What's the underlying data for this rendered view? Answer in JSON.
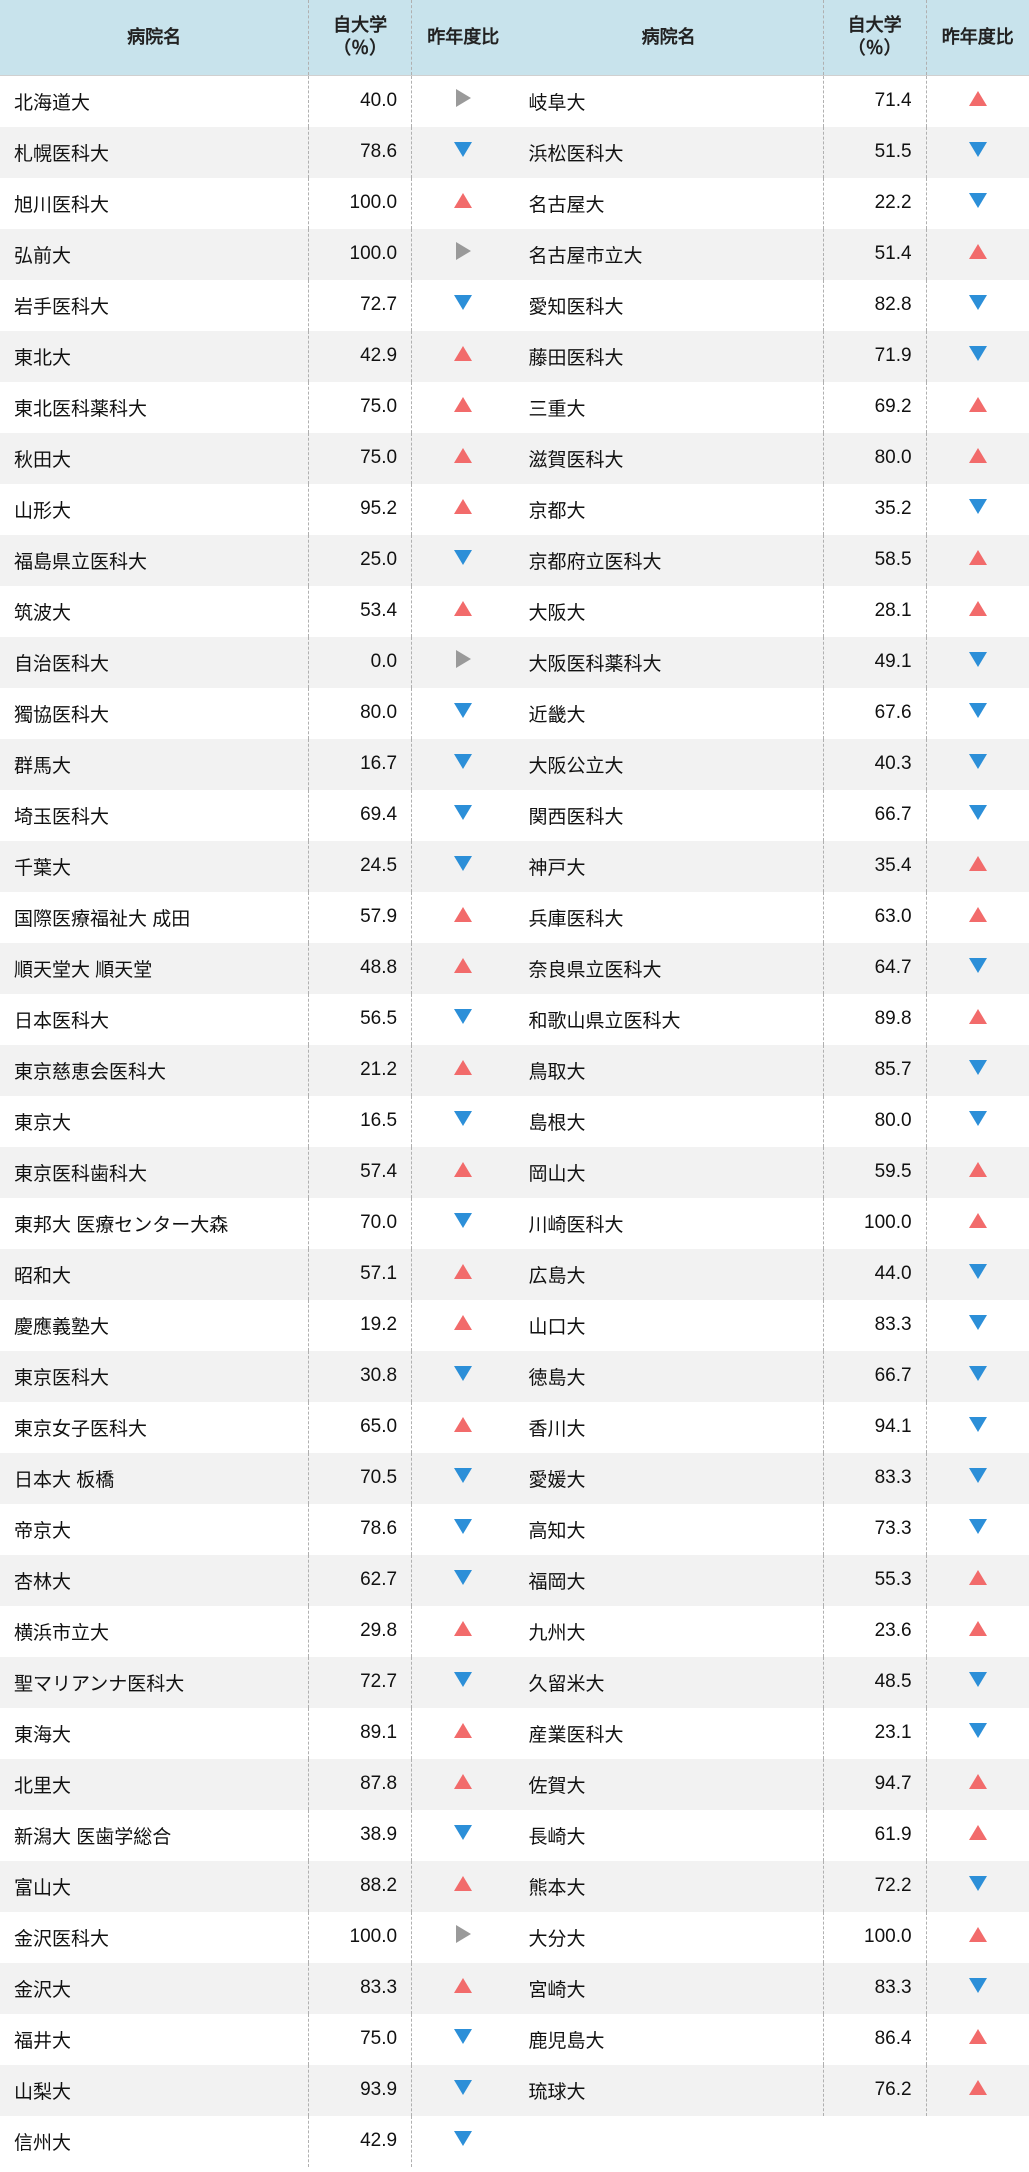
{
  "headers": {
    "name": "病院名",
    "pct": "自大学（％）",
    "change": "昨年度比"
  },
  "colors": {
    "header_bg": "#c8e3ec",
    "row_even": "#f2f2f2",
    "row_odd": "#ffffff",
    "up": "#f26b6b",
    "down": "#2c8fd8",
    "flat": "#9a9a9a",
    "border": "#b0b0b0"
  },
  "left": [
    {
      "name": "北海道大",
      "pct": "40.0",
      "chg": "flat"
    },
    {
      "name": "札幌医科大",
      "pct": "78.6",
      "chg": "down"
    },
    {
      "name": "旭川医科大",
      "pct": "100.0",
      "chg": "up"
    },
    {
      "name": "弘前大",
      "pct": "100.0",
      "chg": "flat"
    },
    {
      "name": "岩手医科大",
      "pct": "72.7",
      "chg": "down"
    },
    {
      "name": "東北大",
      "pct": "42.9",
      "chg": "up"
    },
    {
      "name": "東北医科薬科大",
      "pct": "75.0",
      "chg": "up"
    },
    {
      "name": "秋田大",
      "pct": "75.0",
      "chg": "up"
    },
    {
      "name": "山形大",
      "pct": "95.2",
      "chg": "up"
    },
    {
      "name": "福島県立医科大",
      "pct": "25.0",
      "chg": "down"
    },
    {
      "name": "筑波大",
      "pct": "53.4",
      "chg": "up"
    },
    {
      "name": "自治医科大",
      "pct": "0.0",
      "chg": "flat"
    },
    {
      "name": "獨協医科大",
      "pct": "80.0",
      "chg": "down"
    },
    {
      "name": "群馬大",
      "pct": "16.7",
      "chg": "down"
    },
    {
      "name": "埼玉医科大",
      "pct": "69.4",
      "chg": "down"
    },
    {
      "name": "千葉大",
      "pct": "24.5",
      "chg": "down"
    },
    {
      "name": "国際医療福祉大 成田",
      "pct": "57.9",
      "chg": "up"
    },
    {
      "name": "順天堂大 順天堂",
      "pct": "48.8",
      "chg": "up"
    },
    {
      "name": "日本医科大",
      "pct": "56.5",
      "chg": "down"
    },
    {
      "name": "東京慈恵会医科大",
      "pct": "21.2",
      "chg": "up"
    },
    {
      "name": "東京大",
      "pct": "16.5",
      "chg": "down"
    },
    {
      "name": "東京医科歯科大",
      "pct": "57.4",
      "chg": "up"
    },
    {
      "name": "東邦大 医療センター大森",
      "pct": "70.0",
      "chg": "down"
    },
    {
      "name": "昭和大",
      "pct": "57.1",
      "chg": "up"
    },
    {
      "name": "慶應義塾大",
      "pct": "19.2",
      "chg": "up"
    },
    {
      "name": "東京医科大",
      "pct": "30.8",
      "chg": "down"
    },
    {
      "name": "東京女子医科大",
      "pct": "65.0",
      "chg": "up"
    },
    {
      "name": "日本大 板橋",
      "pct": "70.5",
      "chg": "down"
    },
    {
      "name": "帝京大",
      "pct": "78.6",
      "chg": "down"
    },
    {
      "name": "杏林大",
      "pct": "62.7",
      "chg": "down"
    },
    {
      "name": "横浜市立大",
      "pct": "29.8",
      "chg": "up"
    },
    {
      "name": "聖マリアンナ医科大",
      "pct": "72.7",
      "chg": "down"
    },
    {
      "name": "東海大",
      "pct": "89.1",
      "chg": "up"
    },
    {
      "name": "北里大",
      "pct": "87.8",
      "chg": "up"
    },
    {
      "name": "新潟大 医歯学総合",
      "pct": "38.9",
      "chg": "down"
    },
    {
      "name": "富山大",
      "pct": "88.2",
      "chg": "up"
    },
    {
      "name": "金沢医科大",
      "pct": "100.0",
      "chg": "flat"
    },
    {
      "name": "金沢大",
      "pct": "83.3",
      "chg": "up"
    },
    {
      "name": "福井大",
      "pct": "75.0",
      "chg": "down"
    },
    {
      "name": "山梨大",
      "pct": "93.9",
      "chg": "down"
    },
    {
      "name": "信州大",
      "pct": "42.9",
      "chg": "down"
    }
  ],
  "right": [
    {
      "name": "岐阜大",
      "pct": "71.4",
      "chg": "up"
    },
    {
      "name": "浜松医科大",
      "pct": "51.5",
      "chg": "down"
    },
    {
      "name": "名古屋大",
      "pct": "22.2",
      "chg": "down"
    },
    {
      "name": "名古屋市立大",
      "pct": "51.4",
      "chg": "up"
    },
    {
      "name": "愛知医科大",
      "pct": "82.8",
      "chg": "down"
    },
    {
      "name": "藤田医科大",
      "pct": "71.9",
      "chg": "down"
    },
    {
      "name": "三重大",
      "pct": "69.2",
      "chg": "up"
    },
    {
      "name": "滋賀医科大",
      "pct": "80.0",
      "chg": "up"
    },
    {
      "name": "京都大",
      "pct": "35.2",
      "chg": "down"
    },
    {
      "name": "京都府立医科大",
      "pct": "58.5",
      "chg": "up"
    },
    {
      "name": "大阪大",
      "pct": "28.1",
      "chg": "up"
    },
    {
      "name": "大阪医科薬科大",
      "pct": "49.1",
      "chg": "down"
    },
    {
      "name": "近畿大",
      "pct": "67.6",
      "chg": "down"
    },
    {
      "name": "大阪公立大",
      "pct": "40.3",
      "chg": "down"
    },
    {
      "name": "関西医科大",
      "pct": "66.7",
      "chg": "down"
    },
    {
      "name": "神戸大",
      "pct": "35.4",
      "chg": "up"
    },
    {
      "name": "兵庫医科大",
      "pct": "63.0",
      "chg": "up"
    },
    {
      "name": "奈良県立医科大",
      "pct": "64.7",
      "chg": "down"
    },
    {
      "name": "和歌山県立医科大",
      "pct": "89.8",
      "chg": "up"
    },
    {
      "name": "鳥取大",
      "pct": "85.7",
      "chg": "down"
    },
    {
      "name": "島根大",
      "pct": "80.0",
      "chg": "down"
    },
    {
      "name": "岡山大",
      "pct": "59.5",
      "chg": "up"
    },
    {
      "name": "川崎医科大",
      "pct": "100.0",
      "chg": "up"
    },
    {
      "name": "広島大",
      "pct": "44.0",
      "chg": "down"
    },
    {
      "name": "山口大",
      "pct": "83.3",
      "chg": "down"
    },
    {
      "name": "徳島大",
      "pct": "66.7",
      "chg": "down"
    },
    {
      "name": "香川大",
      "pct": "94.1",
      "chg": "down"
    },
    {
      "name": "愛媛大",
      "pct": "83.3",
      "chg": "down"
    },
    {
      "name": "高知大",
      "pct": "73.3",
      "chg": "down"
    },
    {
      "name": "福岡大",
      "pct": "55.3",
      "chg": "up"
    },
    {
      "name": "九州大",
      "pct": "23.6",
      "chg": "up"
    },
    {
      "name": "久留米大",
      "pct": "48.5",
      "chg": "down"
    },
    {
      "name": "産業医科大",
      "pct": "23.1",
      "chg": "down"
    },
    {
      "name": "佐賀大",
      "pct": "94.7",
      "chg": "up"
    },
    {
      "name": "長崎大",
      "pct": "61.9",
      "chg": "up"
    },
    {
      "name": "熊本大",
      "pct": "72.2",
      "chg": "down"
    },
    {
      "name": "大分大",
      "pct": "100.0",
      "chg": "up"
    },
    {
      "name": "宮崎大",
      "pct": "83.3",
      "chg": "down"
    },
    {
      "name": "鹿児島大",
      "pct": "86.4",
      "chg": "up"
    },
    {
      "name": "琉球大",
      "pct": "76.2",
      "chg": "up"
    }
  ]
}
